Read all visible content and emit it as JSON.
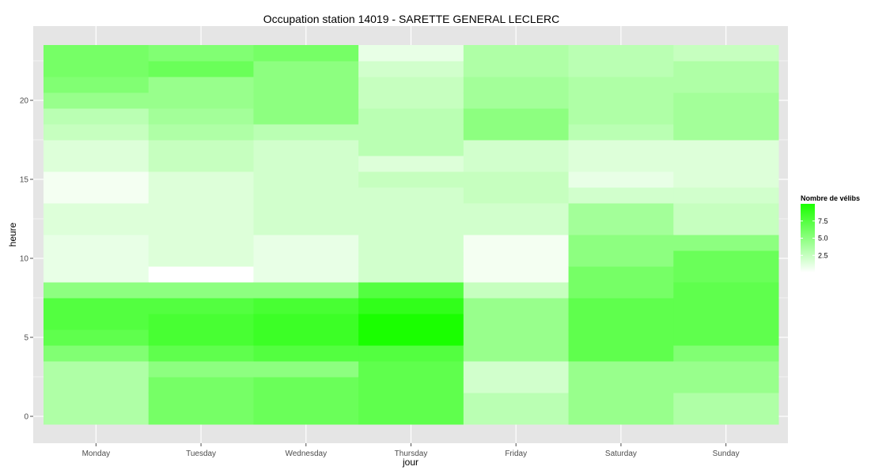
{
  "chart_data": {
    "type": "heatmap",
    "title": "Occupation station 14019 - SARETTE GENERAL LECLERC",
    "xlabel": "jour",
    "ylabel": "heure",
    "categories": [
      "Monday",
      "Tuesday",
      "Wednesday",
      "Thursday",
      "Friday",
      "Saturday",
      "Sunday"
    ],
    "y": [
      0,
      1,
      2,
      3,
      4,
      5,
      6,
      7,
      8,
      9,
      10,
      11,
      12,
      13,
      14,
      15,
      16,
      17,
      18,
      19,
      20,
      21,
      22,
      23
    ],
    "ylim": [
      -0.5,
      23.5
    ],
    "yticks": [
      0,
      5,
      10,
      15,
      20
    ],
    "values": [
      [
        3.5,
        3.5,
        3.5,
        3.5,
        5.5,
        7.0,
        7.5,
        7.5,
        5.0,
        1.0,
        1.0,
        1.0,
        1.5,
        1.5,
        0.5,
        0.5,
        1.5,
        1.5,
        2.5,
        3.0,
        4.5,
        5.5,
        6.0,
        6.0
      ],
      [
        6.0,
        6.0,
        6.0,
        5.0,
        7.0,
        8.0,
        8.0,
        7.5,
        5.0,
        0.0,
        1.5,
        1.5,
        1.5,
        1.5,
        1.5,
        1.5,
        2.5,
        2.5,
        3.5,
        4.0,
        4.5,
        4.5,
        6.5,
        5.5
      ],
      [
        6.5,
        6.5,
        6.5,
        5.0,
        7.5,
        8.5,
        8.5,
        8.0,
        5.0,
        1.0,
        1.0,
        1.0,
        2.0,
        2.0,
        2.0,
        2.0,
        2.0,
        2.0,
        3.0,
        5.0,
        5.0,
        5.0,
        5.0,
        6.0
      ],
      [
        7.0,
        7.0,
        7.0,
        7.0,
        7.5,
        10.0,
        10.0,
        9.0,
        7.5,
        2.0,
        2.0,
        2.0,
        2.0,
        2.0,
        2.0,
        2.5,
        1.5,
        3.0,
        3.0,
        3.0,
        2.5,
        2.5,
        2.0,
        1.0
      ],
      [
        3.0,
        3.0,
        2.0,
        2.0,
        4.5,
        4.5,
        4.5,
        4.5,
        2.5,
        0.5,
        0.5,
        0.5,
        2.0,
        2.0,
        2.5,
        2.5,
        2.0,
        2.0,
        5.0,
        5.0,
        4.0,
        4.0,
        3.5,
        3.5
      ],
      [
        4.5,
        4.5,
        4.5,
        4.5,
        7.0,
        7.0,
        7.0,
        7.0,
        6.0,
        6.0,
        5.0,
        5.0,
        4.0,
        4.0,
        2.0,
        1.0,
        1.5,
        1.5,
        3.0,
        3.5,
        3.5,
        3.5,
        3.0,
        3.0
      ],
      [
        3.5,
        3.5,
        4.5,
        4.5,
        5.5,
        7.0,
        7.0,
        7.0,
        7.0,
        6.5,
        6.5,
        5.0,
        2.5,
        2.5,
        2.0,
        1.5,
        1.5,
        1.5,
        4.0,
        4.0,
        4.0,
        3.5,
        3.5,
        2.5
      ]
    ],
    "legend": {
      "title": "Nombre de vélibs",
      "labels": [
        "7.5",
        "5.0",
        "2.5"
      ],
      "breaks": [
        7.5,
        5.0,
        2.5
      ],
      "range": [
        0,
        10
      ],
      "placement": "right"
    },
    "grid": true,
    "colors": {
      "low": "#ffffff",
      "high": "#1aff00",
      "panel": "#e5e5e5",
      "gridline": "#ffffff"
    }
  }
}
